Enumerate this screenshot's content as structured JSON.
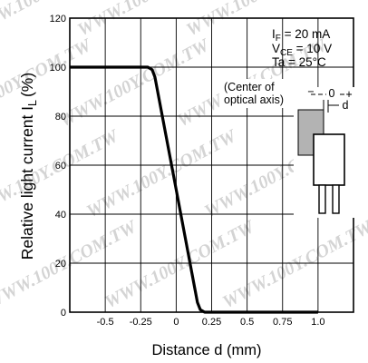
{
  "chart_data": {
    "type": "line",
    "xlabel": "Distance d (mm)",
    "ylabel": "Relative light current I",
    "ylabel_sub": "L",
    "ylabel_unit": "(%)",
    "xlim": [
      -0.75,
      1.25
    ],
    "ylim": [
      0,
      120
    ],
    "x_ticks": [
      -0.5,
      -0.25,
      0,
      0.25,
      0.5,
      0.75,
      1.0
    ],
    "x_tick_labels": [
      "-0.5",
      "-0.25",
      "0",
      "0.25",
      "0.5",
      "0.75",
      "1.0"
    ],
    "y_ticks": [
      0,
      20,
      40,
      60,
      80,
      100,
      120
    ],
    "y_tick_labels": [
      "0",
      "20",
      "40",
      "60",
      "80",
      "100",
      "120"
    ],
    "grid": true,
    "series": [
      {
        "x": [
          -0.75,
          -0.2,
          -0.17,
          -0.15,
          0.0,
          0.15,
          0.17,
          0.2,
          1.0
        ],
        "y": [
          100,
          100,
          99,
          96,
          50,
          4,
          1,
          0,
          0
        ]
      }
    ],
    "conditions": [
      {
        "main": "I",
        "sub": "F",
        "rest": " = 20 mA"
      },
      {
        "main": "V",
        "sub": "CE",
        "rest": " = 10 V"
      },
      {
        "main": "Ta = 25°C",
        "sub": "",
        "rest": ""
      }
    ],
    "note_lines": [
      "(Center of",
      "optical axis)"
    ],
    "diagram_labels": {
      "zero": "0",
      "plus": "+",
      "minus": "−",
      "d": "d"
    },
    "watermark": "WWW.100Y.COM.TW",
    "colors": {
      "curve": "#000000",
      "grid": "#000000",
      "shaded": "#b3b3b3",
      "watermark": "#d4d4d4"
    }
  }
}
